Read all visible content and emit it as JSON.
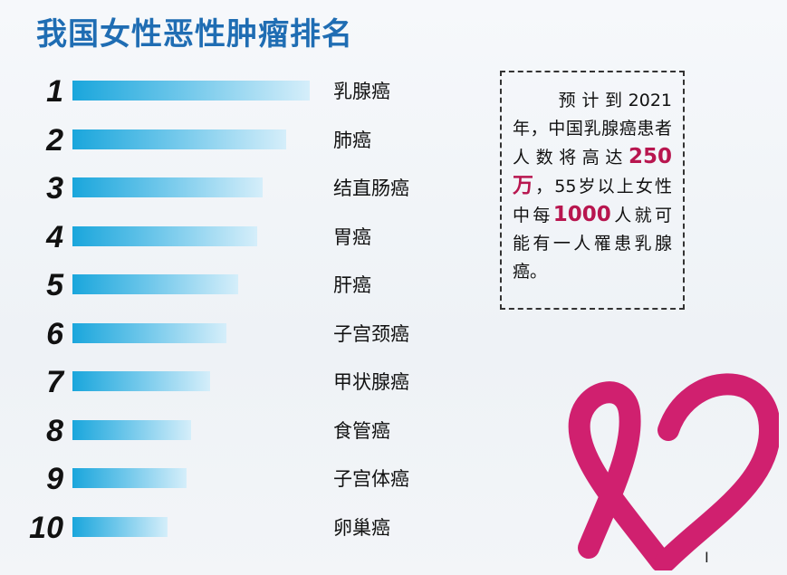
{
  "title": "我国女性恶性肿瘤排名",
  "chart_data": {
    "type": "bar",
    "categories": [
      "乳腺癌",
      "肺癌",
      "结直肠癌",
      "胃癌",
      "肝癌",
      "子宫颈癌",
      "甲状腺癌",
      "食管癌",
      "子宫体癌",
      "卵巢癌"
    ],
    "ranks": [
      "1",
      "2",
      "3",
      "4",
      "5",
      "6",
      "7",
      "8",
      "9",
      "10"
    ],
    "values": [
      10,
      9,
      8,
      7.8,
      7,
      6.5,
      5.8,
      5,
      4.8,
      4
    ]
  },
  "info": {
    "p1": "预计到2021年，中国乳腺癌患者人数将高达",
    "num1": "250 万",
    "p2": "，55岁以上女性中每",
    "num2": "1000",
    "p3": "人就可能有一人罹患乳腺癌。"
  },
  "mark": "I",
  "colors": {
    "title": "#1f6db3",
    "bar_start": "#1aa6dc",
    "highlight": "#b8164f",
    "ribbon": "#d0206f"
  }
}
